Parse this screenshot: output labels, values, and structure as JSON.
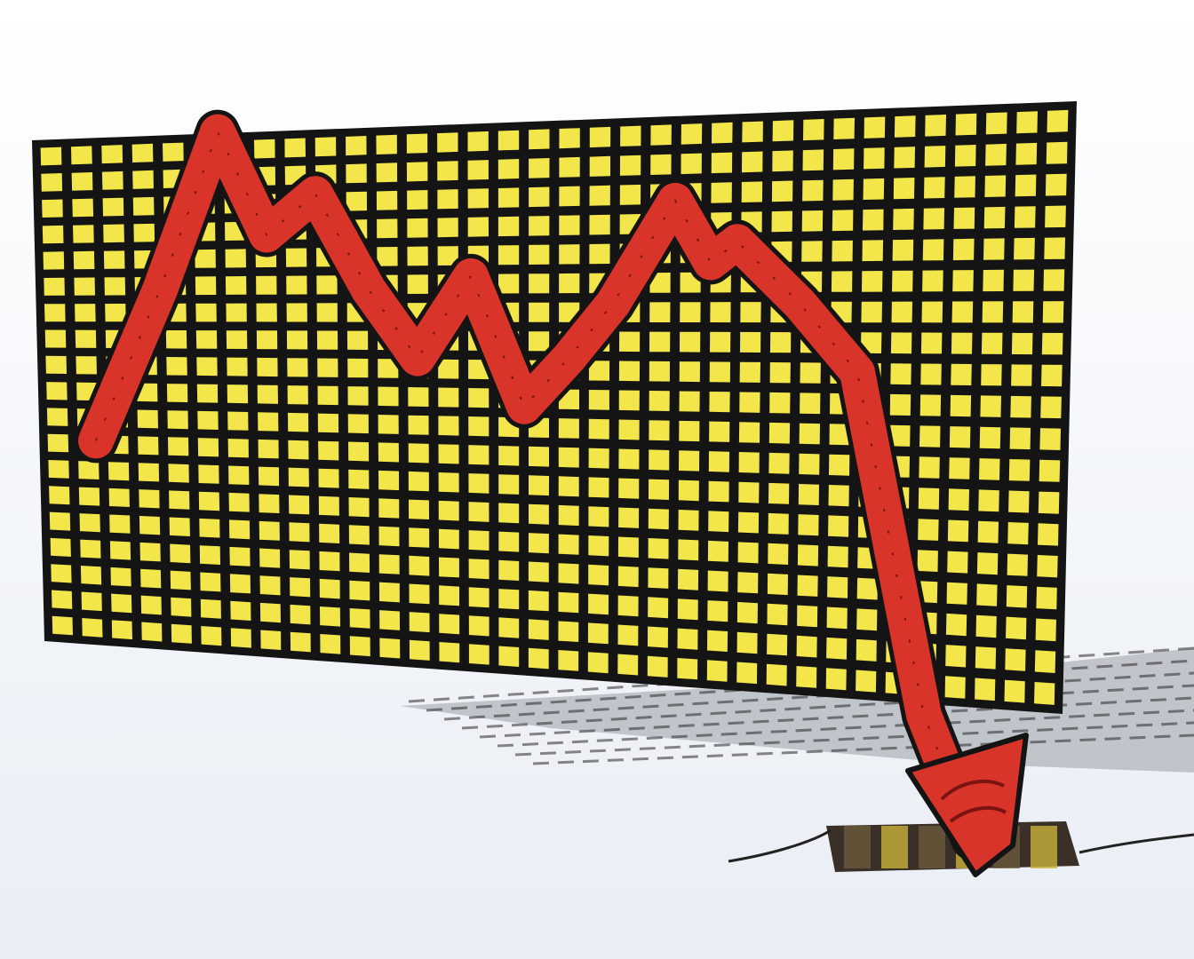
{
  "scene": {
    "subject": "falling-market-chart",
    "colors": {
      "background": "#f4f7fb",
      "grid_cell": "#f2e64a",
      "grid_line": "#141414",
      "arrow_fill": "#d8342a",
      "arrow_dark": "#7a1410",
      "shadow": "#2a2a2a",
      "hole": "#3a3028"
    },
    "grid": {
      "columns": 34,
      "rows": 19
    },
    "trend": {
      "direction": "down",
      "relative_levels": [
        0.5,
        0.72,
        0.95,
        0.8,
        0.86,
        0.72,
        0.62,
        0.74,
        0.55,
        0.62,
        0.7,
        0.85,
        0.76,
        0.79,
        0.7,
        0.6,
        0.1,
        -0.08
      ]
    }
  }
}
